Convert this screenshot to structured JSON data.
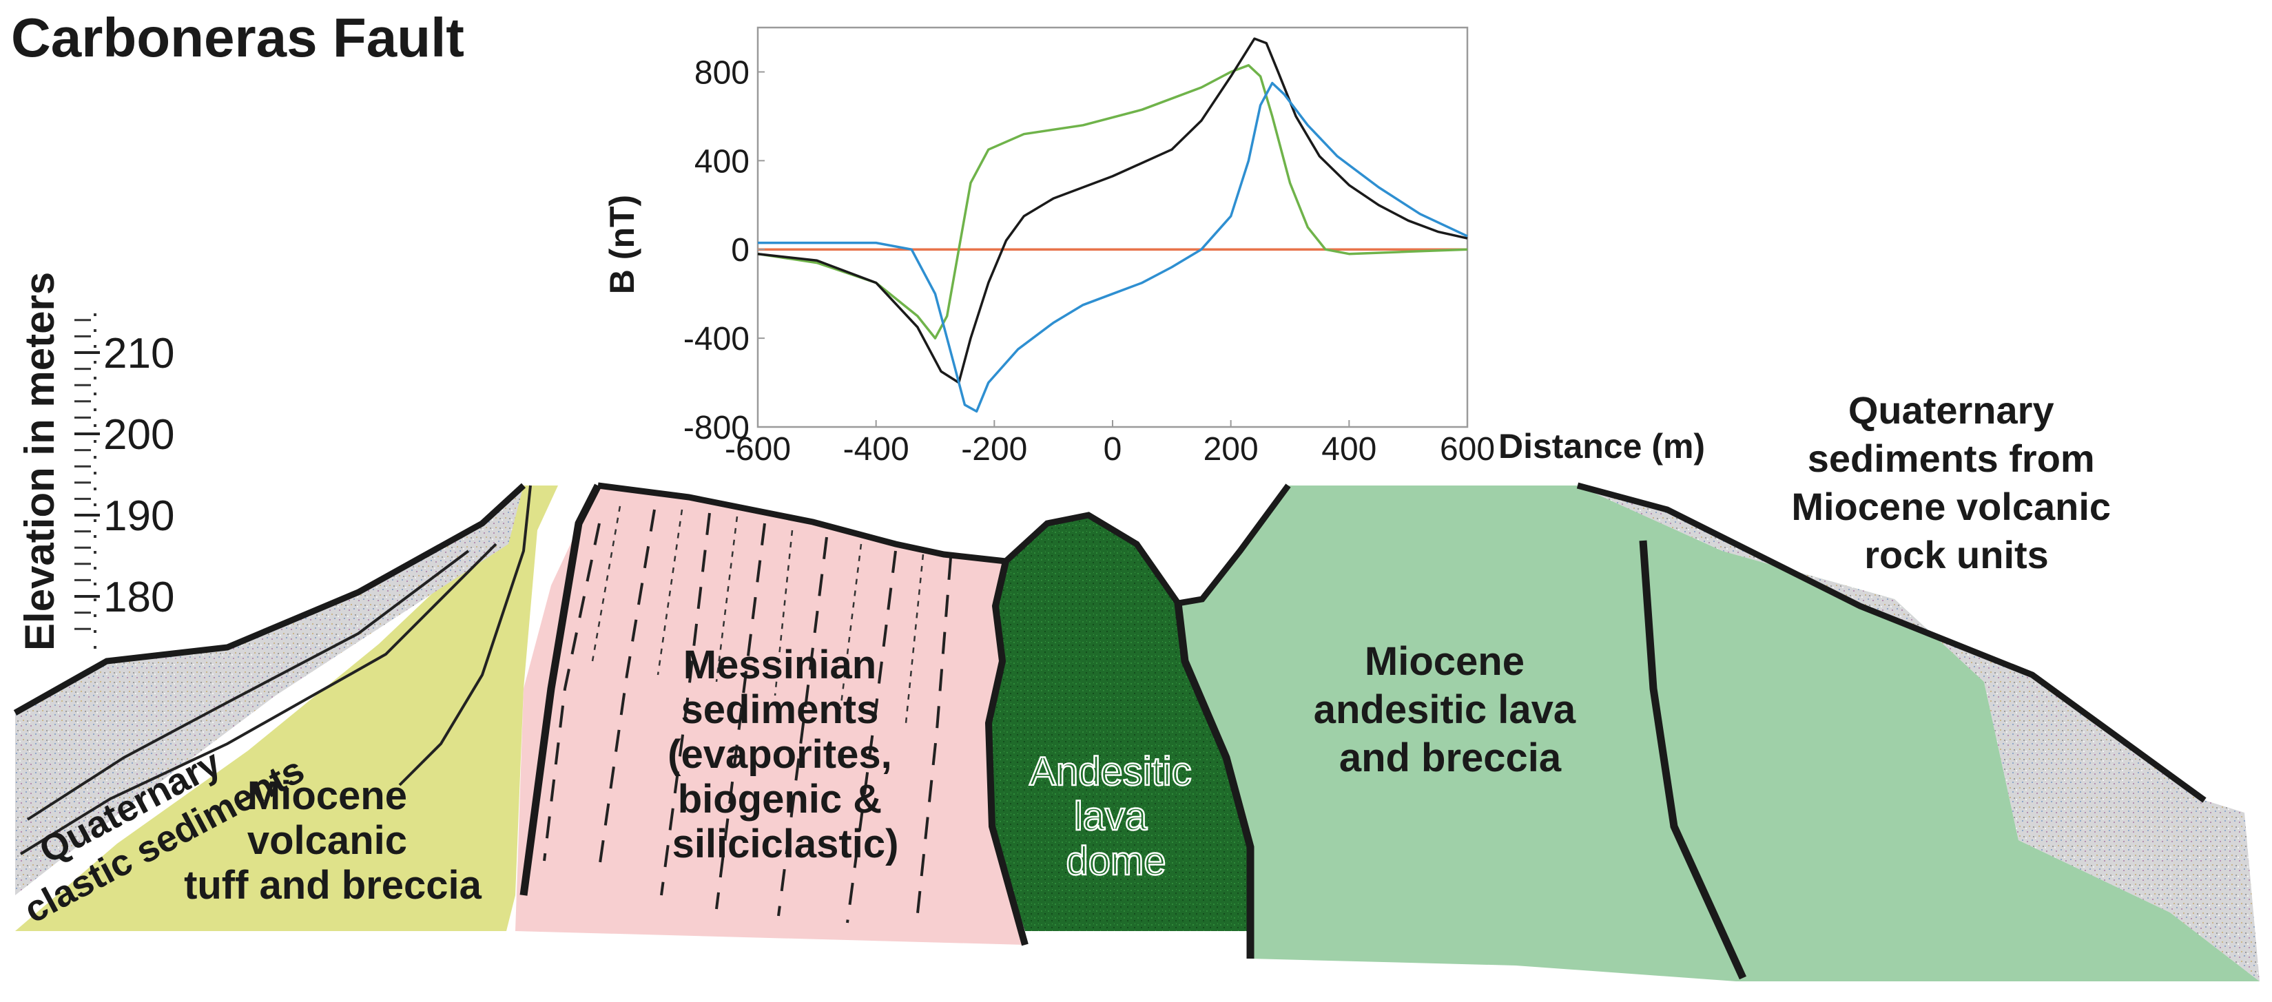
{
  "title": "Carboneras Fault",
  "elevation_axis": {
    "label": "Elevation in meters",
    "ticks": [
      {
        "value": 210,
        "label": "210"
      },
      {
        "value": 200,
        "label": "200"
      },
      {
        "value": 190,
        "label": "190"
      },
      {
        "value": 180,
        "label": "180"
      }
    ]
  },
  "chart_data": {
    "type": "line",
    "xlabel": "Distance (m)",
    "ylabel": "B (nT)",
    "xlim": [
      -600,
      600
    ],
    "ylim": [
      -800,
      1000
    ],
    "x_ticks": [
      {
        "value": -600,
        "label": "-600"
      },
      {
        "value": -400,
        "label": "-400"
      },
      {
        "value": -200,
        "label": "-200"
      },
      {
        "value": 0,
        "label": "0"
      },
      {
        "value": 200,
        "label": "200"
      },
      {
        "value": 400,
        "label": "400"
      },
      {
        "value": 600,
        "label": "600"
      }
    ],
    "y_ticks": [
      {
        "value": 800,
        "label": "800"
      },
      {
        "value": 400,
        "label": "400"
      },
      {
        "value": 0,
        "label": "0"
      },
      {
        "value": -400,
        "label": "-400"
      },
      {
        "value": -800,
        "label": "-800"
      }
    ],
    "grid": false,
    "series": [
      {
        "color": "#e8734a",
        "points": [
          [
            -600,
            0
          ],
          [
            600,
            0
          ]
        ]
      },
      {
        "color": "#6fb34a",
        "points": [
          [
            -600,
            -20
          ],
          [
            -500,
            -60
          ],
          [
            -400,
            -150
          ],
          [
            -330,
            -300
          ],
          [
            -300,
            -400
          ],
          [
            -280,
            -300
          ],
          [
            -260,
            0
          ],
          [
            -240,
            300
          ],
          [
            -210,
            450
          ],
          [
            -150,
            520
          ],
          [
            -50,
            560
          ],
          [
            50,
            630
          ],
          [
            150,
            730
          ],
          [
            200,
            800
          ],
          [
            230,
            830
          ],
          [
            250,
            780
          ],
          [
            270,
            600
          ],
          [
            300,
            300
          ],
          [
            330,
            100
          ],
          [
            360,
            0
          ],
          [
            400,
            -20
          ],
          [
            500,
            -10
          ],
          [
            600,
            0
          ]
        ]
      },
      {
        "color": "#1a1a1a",
        "points": [
          [
            -600,
            -20
          ],
          [
            -500,
            -50
          ],
          [
            -400,
            -150
          ],
          [
            -330,
            -350
          ],
          [
            -290,
            -550
          ],
          [
            -260,
            -600
          ],
          [
            -240,
            -400
          ],
          [
            -210,
            -150
          ],
          [
            -180,
            40
          ],
          [
            -150,
            150
          ],
          [
            -100,
            230
          ],
          [
            0,
            330
          ],
          [
            100,
            450
          ],
          [
            150,
            580
          ],
          [
            200,
            780
          ],
          [
            240,
            950
          ],
          [
            260,
            930
          ],
          [
            280,
            800
          ],
          [
            310,
            600
          ],
          [
            350,
            420
          ],
          [
            400,
            290
          ],
          [
            450,
            200
          ],
          [
            500,
            130
          ],
          [
            550,
            80
          ],
          [
            600,
            50
          ]
        ]
      },
      {
        "color": "#2e8fd1",
        "points": [
          [
            -600,
            30
          ],
          [
            -500,
            30
          ],
          [
            -400,
            30
          ],
          [
            -340,
            0
          ],
          [
            -300,
            -200
          ],
          [
            -270,
            -500
          ],
          [
            -250,
            -700
          ],
          [
            -230,
            -730
          ],
          [
            -210,
            -600
          ],
          [
            -160,
            -450
          ],
          [
            -100,
            -330
          ],
          [
            -50,
            -250
          ],
          [
            0,
            -200
          ],
          [
            50,
            -150
          ],
          [
            100,
            -80
          ],
          [
            150,
            0
          ],
          [
            200,
            150
          ],
          [
            230,
            400
          ],
          [
            250,
            650
          ],
          [
            270,
            750
          ],
          [
            290,
            700
          ],
          [
            330,
            560
          ],
          [
            380,
            420
          ],
          [
            450,
            280
          ],
          [
            520,
            160
          ],
          [
            600,
            60
          ]
        ]
      }
    ]
  },
  "units": [
    {
      "key": "quaternary_clastic",
      "lines": [
        "Quaternary",
        "clastic sediments"
      ],
      "fill": "#d7d9d4"
    },
    {
      "key": "miocene_tuff",
      "lines": [
        "Miocene",
        "volcanic",
        "tuff and breccia"
      ],
      "fill": "#dfe28a"
    },
    {
      "key": "messinian",
      "lines": [
        "Messinian",
        "sediments",
        "(evaporites,",
        "biogenic &",
        "siliciclastic)"
      ],
      "fill": "#f7cfd0"
    },
    {
      "key": "lava_dome",
      "lines": [
        "Andesitic",
        "lava",
        "dome"
      ],
      "fill": "#1f6e2a"
    },
    {
      "key": "miocene_lava",
      "lines": [
        "Miocene",
        "andesitic lava",
        "and breccia"
      ],
      "fill": "#9fd0a8"
    },
    {
      "key": "quaternary_volcanic",
      "lines": [
        "Quaternary",
        "sediments from",
        "Miocene volcanic",
        "rock units"
      ],
      "fill": "#d5d3d6"
    }
  ]
}
